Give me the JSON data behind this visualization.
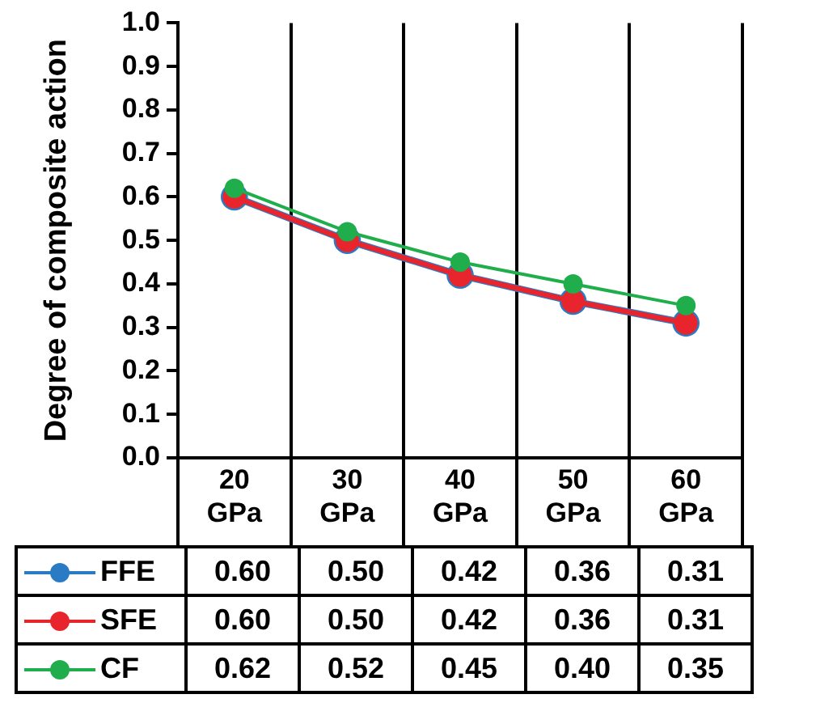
{
  "chart_data": {
    "type": "line",
    "ylabel": "Degree of composite action",
    "categories": [
      "20 GPa",
      "30 GPa",
      "40 GPa",
      "50 GPa",
      "60 GPa"
    ],
    "series": [
      {
        "name": "FFE",
        "color": "#2a7bc4",
        "values": [
          0.6,
          0.5,
          0.42,
          0.36,
          0.31
        ],
        "value_labels": [
          "0.60",
          "0.50",
          "0.42",
          "0.36",
          "0.31"
        ]
      },
      {
        "name": "SFE",
        "color": "#e8252c",
        "values": [
          0.6,
          0.5,
          0.42,
          0.36,
          0.31
        ],
        "value_labels": [
          "0.60",
          "0.50",
          "0.42",
          "0.36",
          "0.31"
        ]
      },
      {
        "name": "CF",
        "color": "#1fae4b",
        "values": [
          0.62,
          0.52,
          0.45,
          0.4,
          0.35
        ],
        "value_labels": [
          "0.62",
          "0.52",
          "0.45",
          "0.40",
          "0.35"
        ]
      }
    ],
    "ylim": [
      0,
      1
    ],
    "yticks": [
      {
        "value": 0,
        "label": "0.0"
      },
      0.1,
      0.2,
      0.3,
      0.4,
      0.5,
      0.6,
      0.7,
      0.8,
      0.9,
      {
        "value": 1,
        "label": "1.0"
      }
    ],
    "grid": "x",
    "legend": "bottom",
    "marker": "circle",
    "line_style": "solid"
  }
}
